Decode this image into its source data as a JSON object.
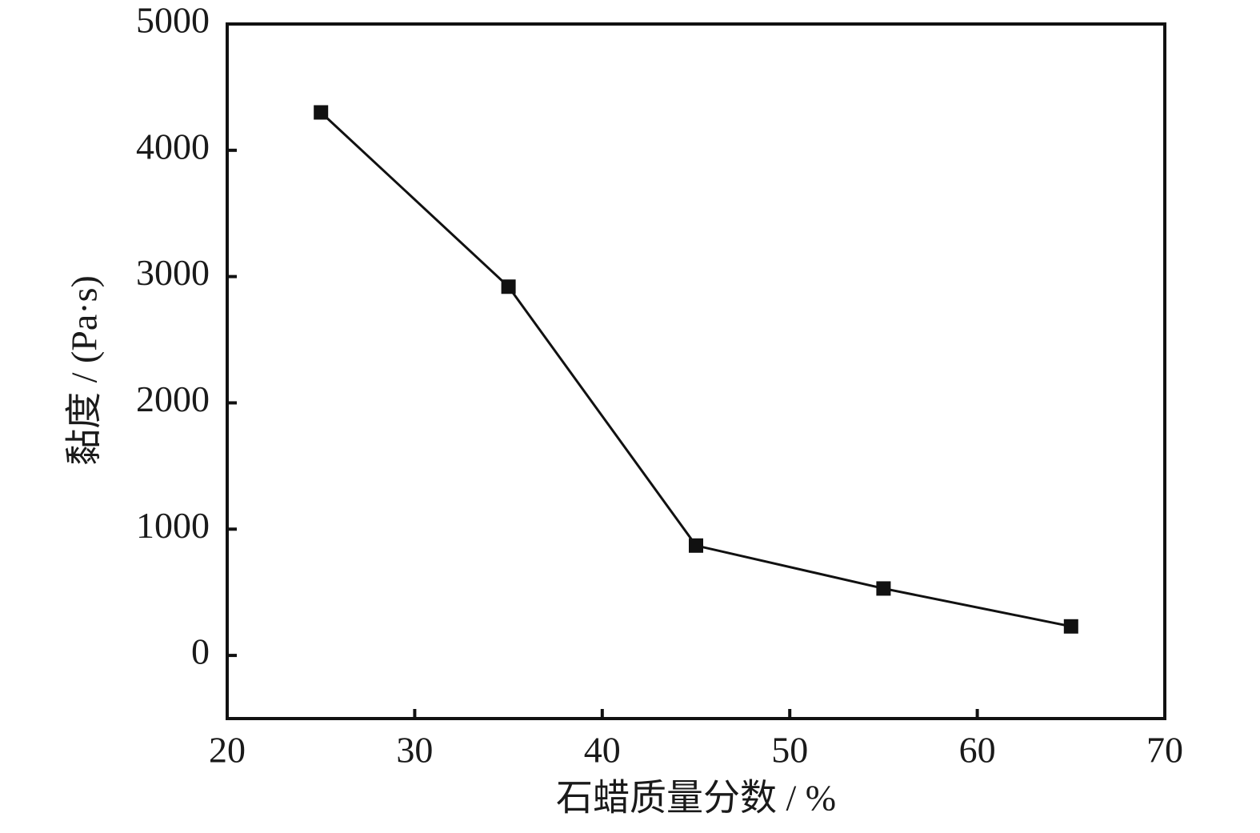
{
  "chart_data": {
    "type": "line",
    "x_label": "石蜡质量分数 / %",
    "y_label": "黏度 / (Pa·s)",
    "x": [
      25,
      35,
      45,
      55,
      65
    ],
    "series": [
      {
        "color": "#111111",
        "values": [
          4300,
          2920,
          870,
          530,
          230
        ]
      }
    ],
    "xlim": [
      20,
      70
    ],
    "xticks": [
      20,
      30,
      40,
      50,
      60,
      70
    ],
    "ylim": [
      -500,
      5000
    ],
    "yticks": [
      0,
      1000,
      2000,
      3000,
      4000,
      5000
    ]
  }
}
